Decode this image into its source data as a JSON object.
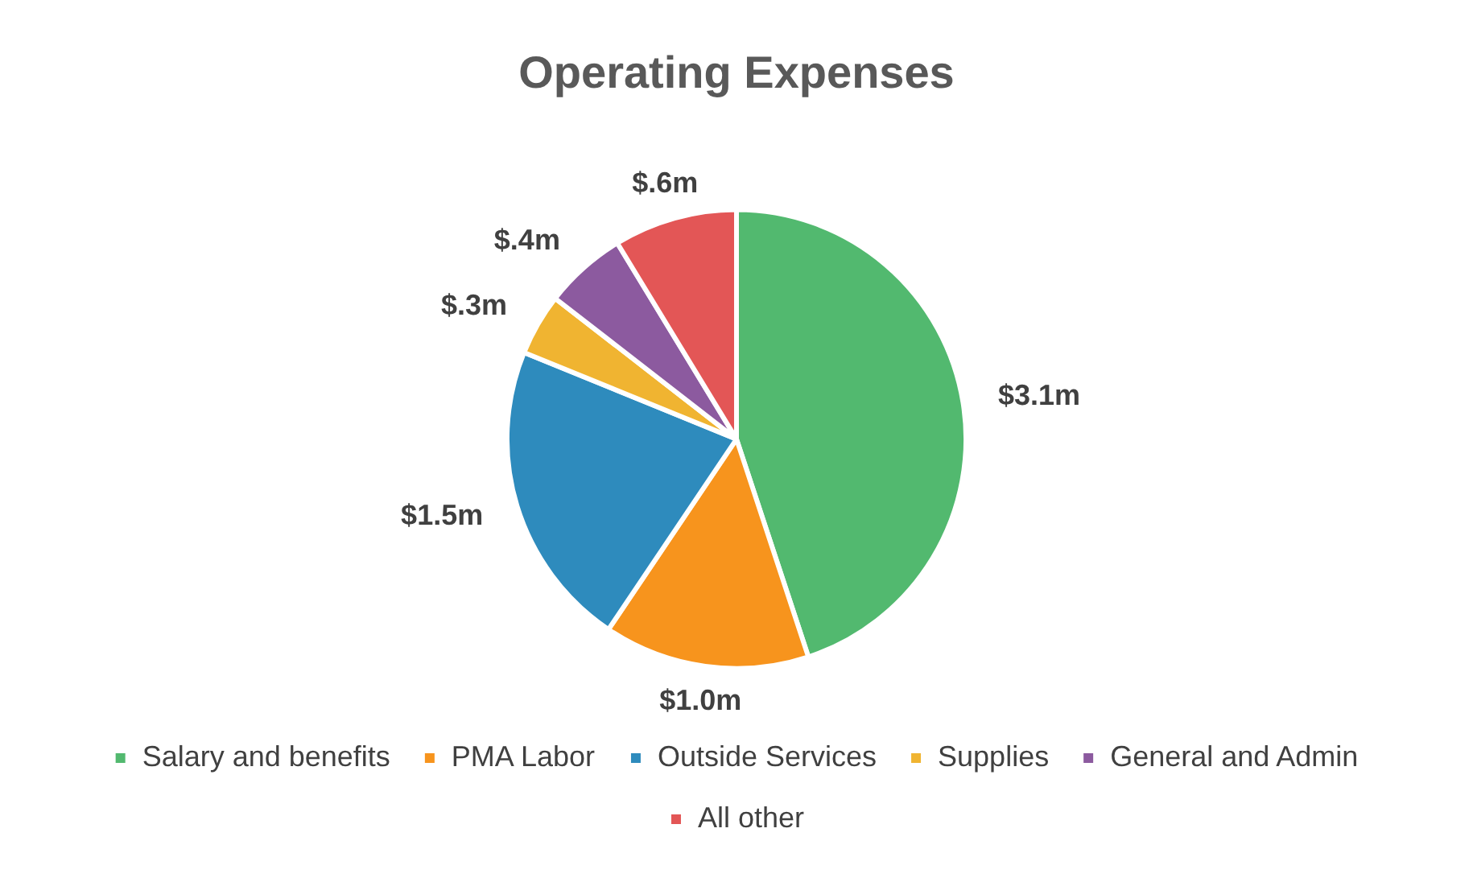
{
  "chart_data": {
    "type": "pie",
    "title": "Operating Expenses",
    "categories": [
      "Salary and benefits",
      "PMA Labor",
      "Outside Services",
      "Supplies",
      "General and Admin",
      "All other"
    ],
    "values": [
      3.1,
      1.0,
      1.5,
      0.3,
      0.4,
      0.6
    ],
    "value_labels": [
      "$3.1m",
      "$1.0m",
      "$1.5m",
      "$.3m",
      "$.4m",
      "$.6m"
    ],
    "colors": [
      "#52b96f",
      "#f7941d",
      "#2e8bbd",
      "#f0b431",
      "#8c5a9f",
      "#e35656"
    ],
    "legend": "bottom"
  }
}
